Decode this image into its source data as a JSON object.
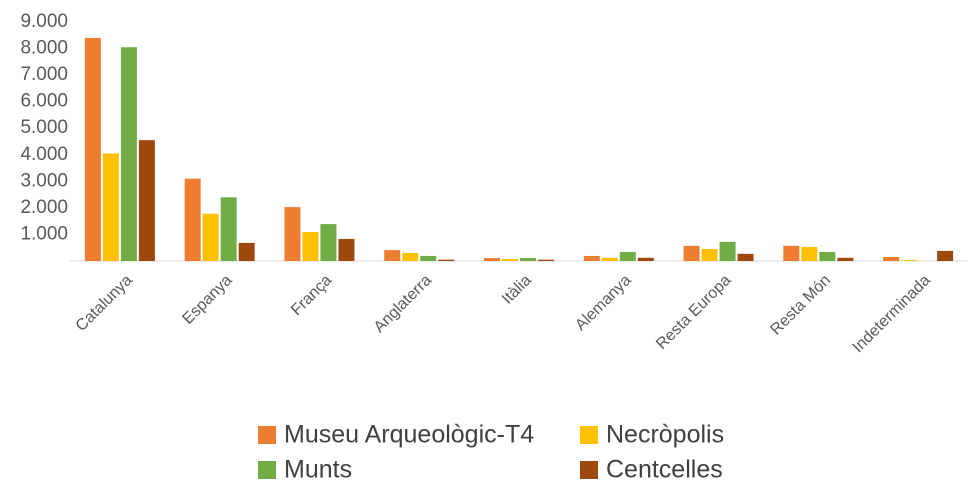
{
  "chart_data": {
    "type": "bar",
    "categories": [
      "Catalunya",
      "Espanya",
      "França",
      "Anglaterra",
      "Itàlia",
      "Alemanya",
      "Resta Europa",
      "Resta Món",
      "Indeterminada"
    ],
    "series": [
      {
        "name": "Museu Arqueològic-T4",
        "color": "#ED7D31",
        "values": [
          8400,
          3100,
          2030,
          410,
          110,
          190,
          570,
          570,
          150
        ]
      },
      {
        "name": "Necròpolis",
        "color": "#FFC000",
        "values": [
          4050,
          1780,
          1090,
          300,
          80,
          120,
          450,
          530,
          30
        ]
      },
      {
        "name": "Munts",
        "color": "#70AD47",
        "values": [
          8050,
          2400,
          1390,
          190,
          110,
          340,
          720,
          340,
          0
        ]
      },
      {
        "name": "Centcelles",
        "color": "#9E480E",
        "values": [
          4550,
          680,
          830,
          50,
          50,
          120,
          270,
          120,
          380
        ]
      }
    ],
    "ylim": [
      0,
      9000
    ],
    "yticks": [
      {
        "value": 1000,
        "label": "1.000"
      },
      {
        "value": 2000,
        "label": "2.000"
      },
      {
        "value": 3000,
        "label": "3.000"
      },
      {
        "value": 4000,
        "label": "4.000"
      },
      {
        "value": 5000,
        "label": "5.000"
      },
      {
        "value": 6000,
        "label": "6.000"
      },
      {
        "value": 7000,
        "label": "7.000"
      },
      {
        "value": 8000,
        "label": "8.000"
      },
      {
        "value": 9000,
        "label": "9.000"
      }
    ],
    "grid": false,
    "legend": "bottom"
  }
}
